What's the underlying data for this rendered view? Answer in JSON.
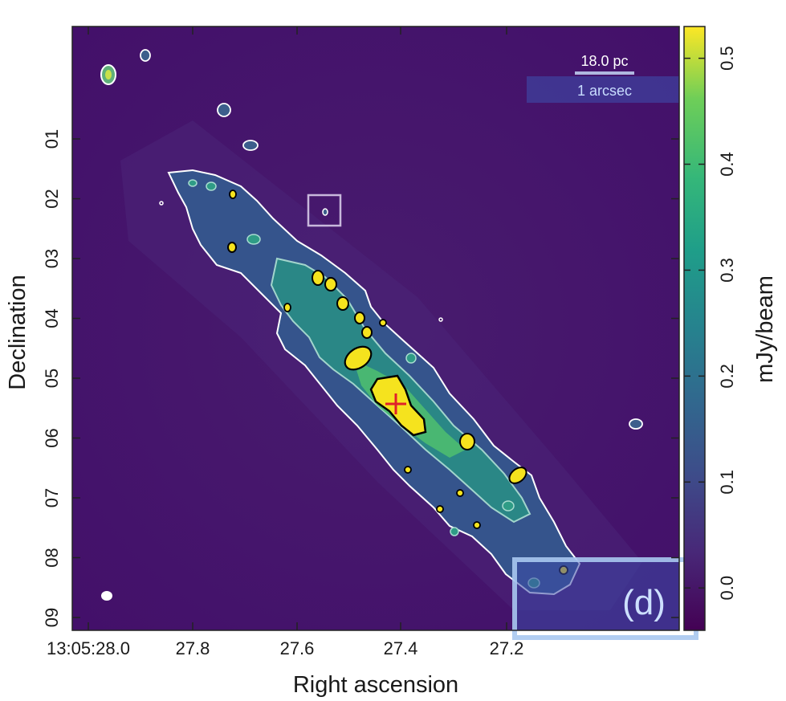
{
  "chart_data": {
    "type": "heatmap",
    "title": "",
    "xlabel": "Right ascension",
    "ylabel": "Declination",
    "x_ticks": [
      "13:05:28.0",
      "27.8",
      "27.6",
      "27.4",
      "27.2"
    ],
    "y_ticks": [
      "01",
      "02",
      "03",
      "04",
      "05",
      "06",
      "07",
      "08",
      "09"
    ],
    "colorbar": {
      "label": "mJy/beam",
      "ticks": [
        0.0,
        0.1,
        0.2,
        0.3,
        0.4,
        0.5
      ],
      "tick_labels": [
        "0.0",
        "0.1",
        "0.2",
        "0.3",
        "0.4",
        "0.5"
      ],
      "range": [
        -0.04,
        0.53
      ],
      "colormap": "viridis"
    },
    "annotations": {
      "scale_bar_label": "18.0 pc",
      "angular_scale_label": "1 arcsec",
      "panel_label": "(d)"
    },
    "marker": {
      "symbol": "+",
      "color": "#e0202a"
    },
    "contour_colors": {
      "outer": "#ffffff",
      "inner": "#a8dcd0",
      "peak": "#000000"
    }
  },
  "colors": {
    "background": "#45106a",
    "disk_low": "#3e4d8a",
    "disk_mid": "#2e8a89",
    "disk_high": "#5fc46a",
    "peak": "#f5e31e",
    "cross": "#e0202a",
    "highlight_box": "#a9c8f0"
  }
}
